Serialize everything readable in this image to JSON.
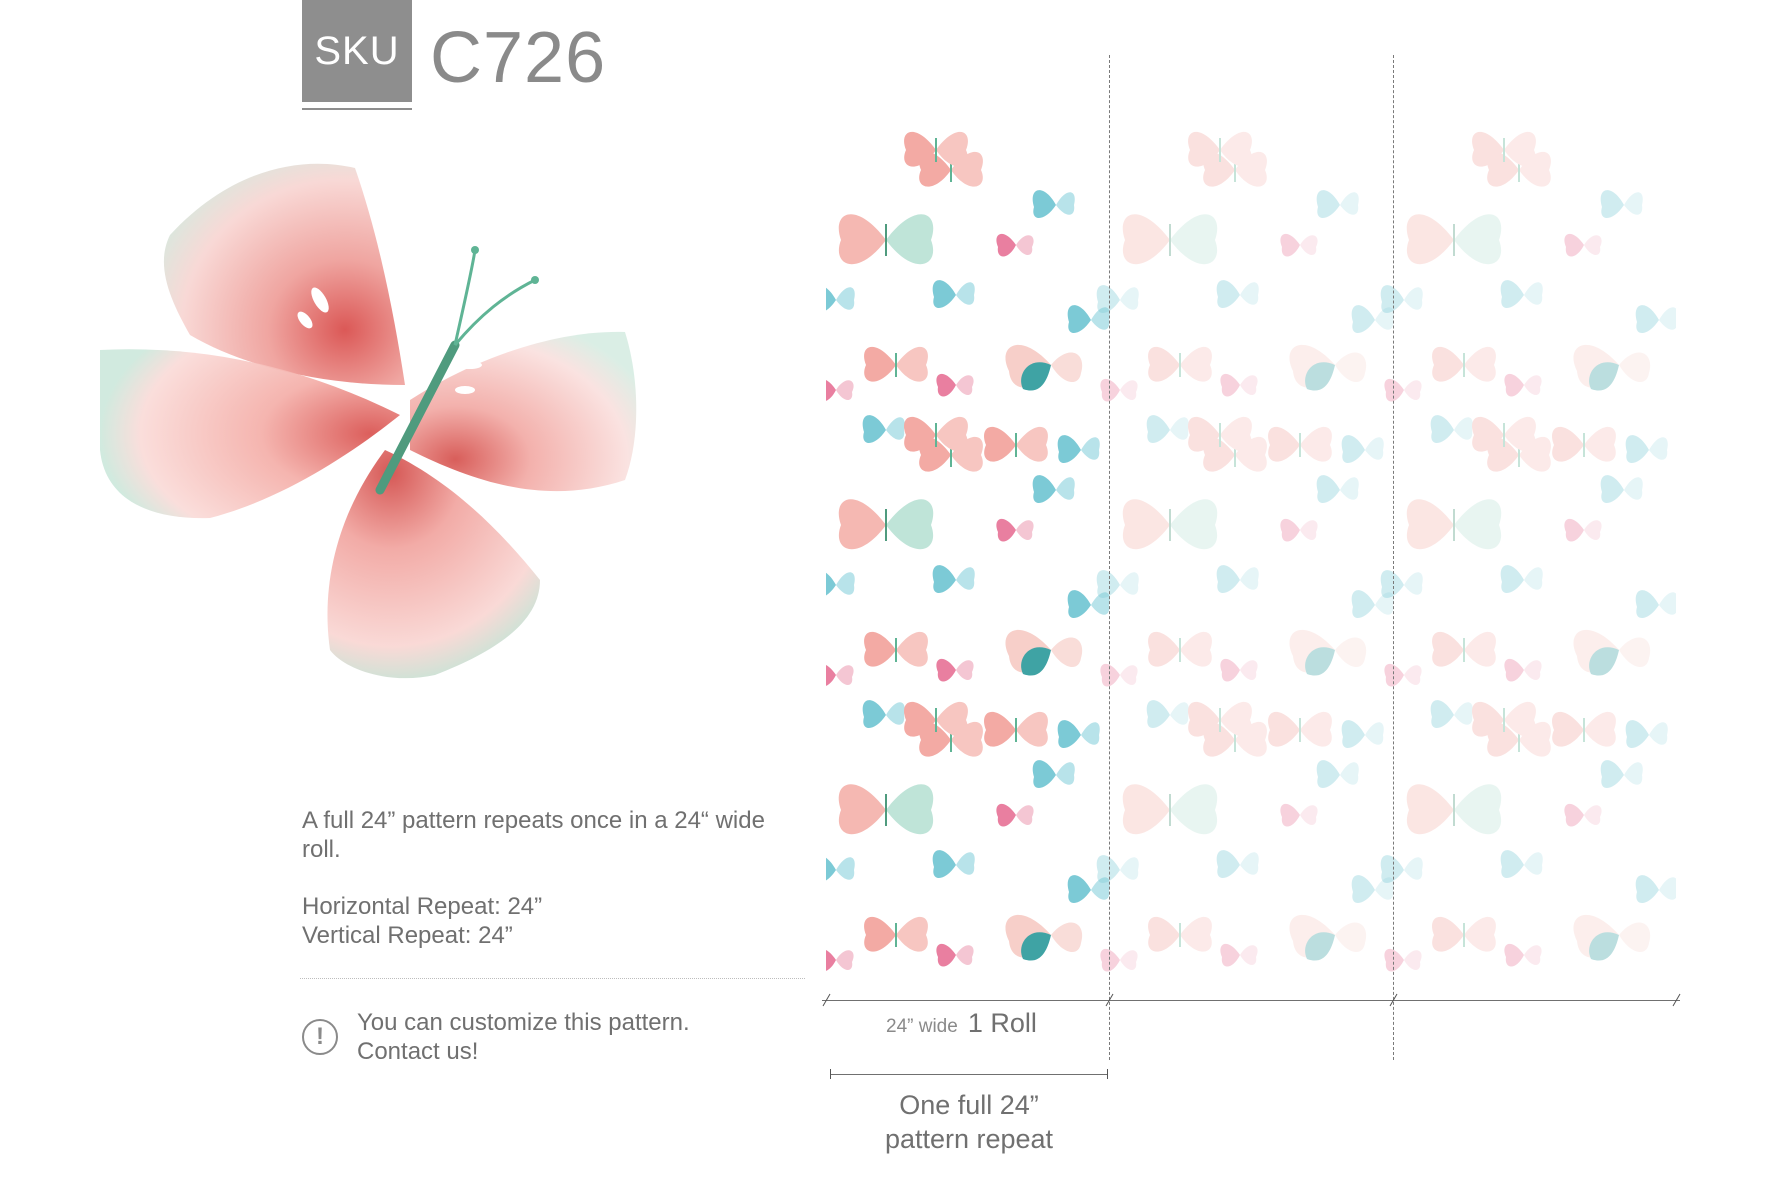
{
  "header": {
    "sku_label": "SKU",
    "sku_code": "C726"
  },
  "info": {
    "full_pattern": "A full 24” pattern repeats once in a 24“ wide roll.",
    "horizontal_repeat": "Horizontal Repeat: 24”",
    "vertical_repeat": "Vertical Repeat: 24”"
  },
  "notice": {
    "icon": "exclamation-circle-icon",
    "line1": "You can customize this pattern.",
    "line2": "Contact us!"
  },
  "roll": {
    "width_label": "24” wide",
    "name": "1 Roll"
  },
  "repeat": {
    "line1": "One full 24”",
    "line2": "pattern repeat"
  },
  "colors": {
    "sku_box": "#8e8e8e",
    "text": "#707070",
    "butterfly_pink": "#f2a9a4",
    "butterfly_red": "#d9534f",
    "butterfly_green": "#5fb495",
    "butterfly_teal": "#4fb3c6"
  }
}
